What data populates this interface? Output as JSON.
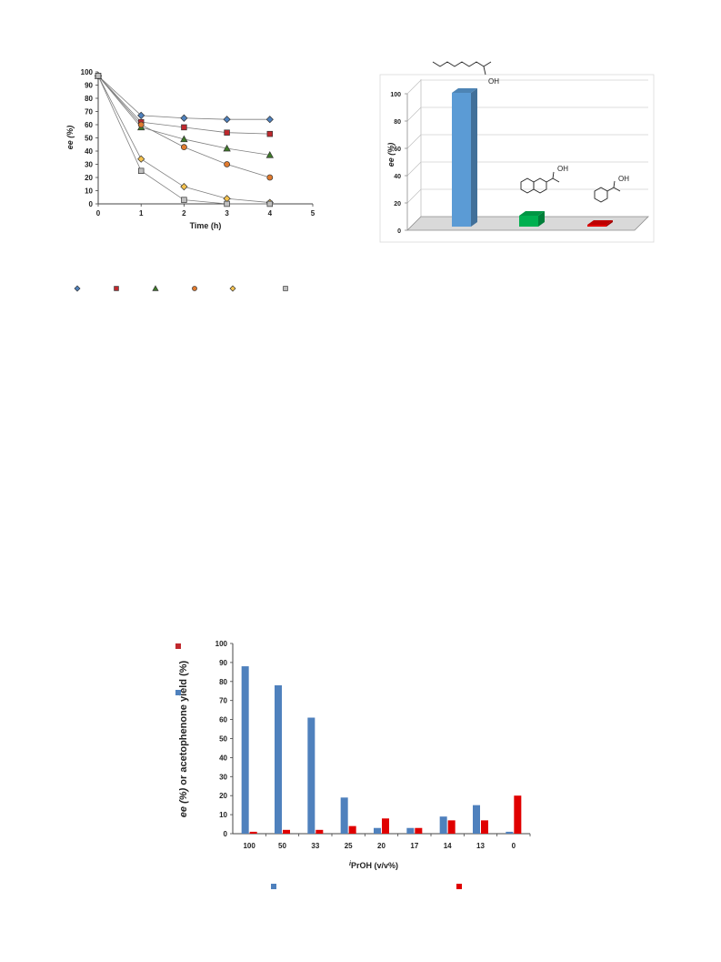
{
  "chart_data": [
    {
      "type": "line",
      "xlabel": "Time (h)",
      "ylabel": "ee (%)",
      "xlim": [
        0,
        5
      ],
      "ylim": [
        0,
        100
      ],
      "xticks": [
        "0",
        "1",
        "2",
        "3",
        "4",
        "5"
      ],
      "yticks": [
        "0",
        "10",
        "20",
        "30",
        "40",
        "50",
        "60",
        "70",
        "80",
        "90",
        "100"
      ],
      "grid": false,
      "legend": "bottom",
      "x": [
        0,
        1,
        2,
        3,
        4
      ],
      "series": [
        {
          "marker": "diamond",
          "color": "#4f81bd",
          "values": [
            97,
            67,
            65,
            64,
            64
          ]
        },
        {
          "marker": "square",
          "color": "#c0282d",
          "values": [
            97,
            62,
            58,
            54,
            53
          ]
        },
        {
          "marker": "triangle",
          "color": "#3f7a2a",
          "values": [
            97,
            58,
            49,
            42,
            37
          ]
        },
        {
          "marker": "circle",
          "color": "#e07b2f",
          "values": [
            97,
            60,
            43,
            30,
            20
          ]
        },
        {
          "marker": "diamond",
          "color": "#f4c24f",
          "values": [
            97,
            34,
            13,
            4,
            1
          ]
        },
        {
          "marker": "square",
          "color": "#bfbfbf",
          "values": [
            97,
            25,
            3,
            0,
            0
          ]
        }
      ]
    },
    {
      "type": "bar",
      "style": "3d",
      "ylabel": "ee (%)",
      "ylim": [
        0,
        100
      ],
      "yticks": [
        "0",
        "20",
        "40",
        "60",
        "80",
        "100"
      ],
      "grid": true,
      "categories": [
        "",
        "",
        ""
      ],
      "values": [
        98,
        8,
        0.5
      ],
      "colors": [
        "#5b9bd5",
        "#00b050",
        "#e00000"
      ],
      "structure_labels": [
        "OH",
        "OH",
        "OH"
      ]
    },
    {
      "type": "bar",
      "xlabel_prefix": "i",
      "xlabel": "PrOH (v/v%)",
      "ylabel_a": "ee (%)",
      "ylabel_b": "or acetophenone yield (%)",
      "ylim": [
        0,
        100
      ],
      "yticks": [
        "0",
        "10",
        "20",
        "30",
        "40",
        "50",
        "60",
        "70",
        "80",
        "90",
        "100"
      ],
      "grid": false,
      "legend": "bottom",
      "categories": [
        "100",
        "50",
        "33",
        "25",
        "20",
        "17",
        "14",
        "13",
        "0"
      ],
      "series": [
        {
          "color": "#4f81bd",
          "values": [
            88,
            78,
            61,
            19,
            3,
            3,
            9,
            15,
            1
          ]
        },
        {
          "color": "#e00000",
          "values": [
            1,
            2,
            2,
            4,
            8,
            3,
            7,
            7,
            20
          ]
        }
      ]
    }
  ]
}
